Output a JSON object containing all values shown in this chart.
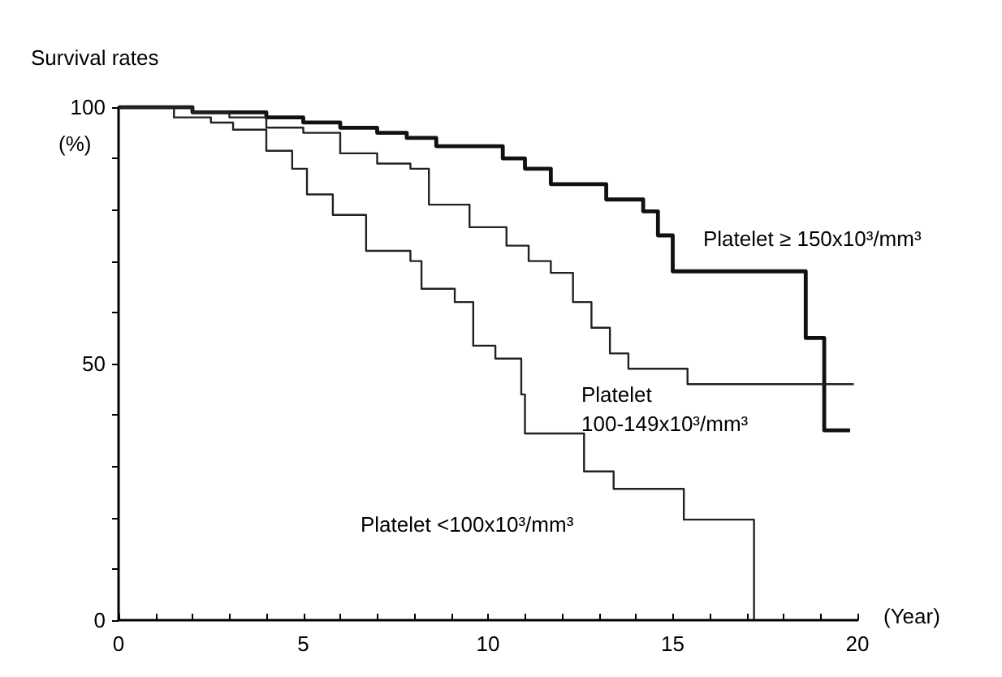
{
  "chart_data": {
    "type": "step",
    "title": "Survival rates",
    "ylabel": "(%)",
    "xlabel": "(Year)",
    "xlim": [
      0,
      20
    ],
    "xticks": [
      0,
      {
        "value": 1,
        "label": null
      },
      {
        "value": 2,
        "label": null
      },
      {
        "value": 3,
        "label": null
      },
      {
        "value": 4,
        "label": null
      },
      5,
      {
        "value": 6,
        "label": null
      },
      {
        "value": 7,
        "label": null
      },
      {
        "value": 8,
        "label": null
      },
      {
        "value": 9,
        "label": null
      },
      10,
      {
        "value": 11,
        "label": null
      },
      {
        "value": 12,
        "label": null
      },
      {
        "value": 13,
        "label": null
      },
      {
        "value": 14,
        "label": null
      },
      15,
      {
        "value": 16,
        "label": null
      },
      {
        "value": 17,
        "label": null
      },
      {
        "value": 18,
        "label": null
      },
      {
        "value": 19,
        "label": null
      },
      20
    ],
    "ylim": [
      0,
      100
    ],
    "yticks": [
      0,
      {
        "value": 10,
        "label": null
      },
      {
        "value": 20,
        "label": null
      },
      {
        "value": 30,
        "label": null
      },
      {
        "value": 40,
        "label": null
      },
      50,
      {
        "value": 60,
        "label": null
      },
      {
        "value": 70,
        "label": null
      },
      {
        "value": 80,
        "label": null
      },
      {
        "value": 90,
        "label": null
      },
      100
    ],
    "grid": false,
    "legend": false,
    "marker": "none",
    "series": [
      {
        "name": "Platelet ≥ 150x10³/mm³",
        "color": "#111111",
        "x": [
          0,
          2,
          4,
          5,
          6,
          7,
          7.8,
          8.6,
          10.4,
          11,
          11.7,
          13.2,
          14.2,
          14.6,
          15.0,
          18.6,
          19.1,
          19.8
        ],
        "values": [
          100,
          99,
          98,
          97,
          96,
          95,
          94,
          92.4,
          90,
          88,
          85,
          82,
          79.7,
          75,
          68,
          55,
          37,
          37
        ]
      },
      {
        "name": "Platelet\n100-149x10³/mm³",
        "color": "#222222",
        "x": [
          0,
          2,
          3,
          4,
          5,
          6,
          7,
          7.9,
          8.4,
          9.5,
          10.5,
          11.1,
          11.7,
          12.3,
          12.8,
          13.3,
          13.8,
          15.4,
          19.9
        ],
        "values": [
          100,
          99,
          98,
          96,
          95,
          91,
          89,
          88,
          81,
          76.6,
          73,
          70,
          67.7,
          62,
          57,
          52,
          49,
          46,
          46
        ]
      },
      {
        "name": "Platelet <100x10³/mm³",
        "color": "#222222",
        "x": [
          0,
          1.5,
          2.5,
          3.1,
          4.0,
          4.7,
          5.1,
          5.8,
          6.7,
          7.9,
          8.2,
          9.1,
          9.6,
          10.2,
          10.9,
          11.0,
          12.6,
          13.4,
          15.3,
          17.2
        ],
        "values": [
          100,
          98,
          97,
          95.6,
          91.5,
          88,
          83,
          79,
          72,
          70,
          64.6,
          62,
          53.5,
          51,
          44,
          36.4,
          29,
          25.6,
          19.6,
          0
        ]
      }
    ]
  }
}
